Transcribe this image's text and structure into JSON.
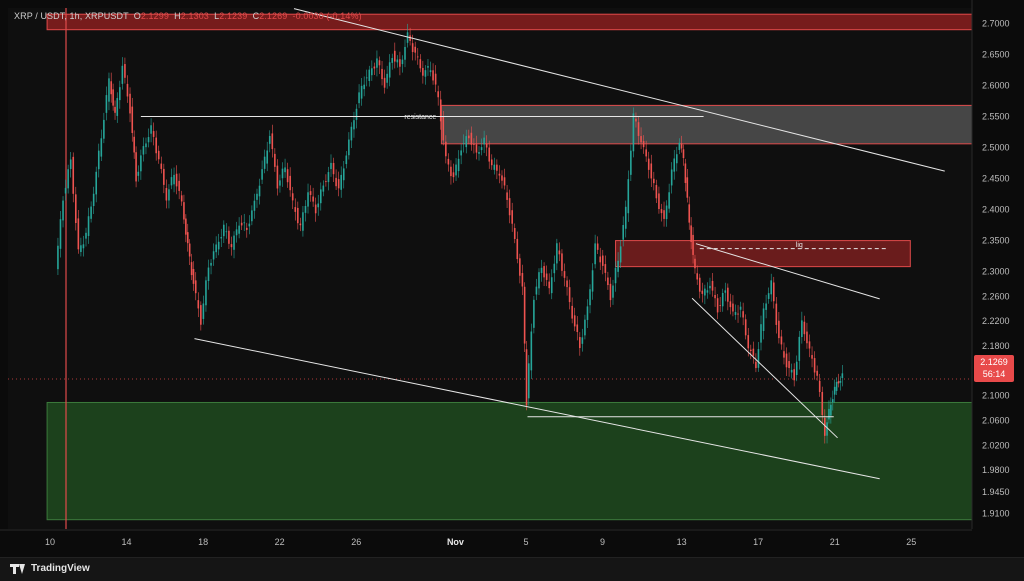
{
  "header": {
    "symbol": "XRP / USDT, 1h, XRPUSDT",
    "o_label": "O",
    "o_value": "2.1299",
    "h_label": "H",
    "h_value": "2.1303",
    "l_label": "L",
    "l_value": "2.1239",
    "c_label": "C",
    "c_value": "2.1269",
    "change": "-0.0030 (-0.14%)"
  },
  "price_tag": {
    "price": "2.1269",
    "countdown": "56:14"
  },
  "footer": {
    "brand": "TradingView"
  },
  "colors": {
    "up": "#26a69a",
    "down": "#ef5350",
    "zone_red": "#8a1e1e",
    "zone_green": "#1f4a1f",
    "resistance_zone": "#5a5a5a",
    "line": "#e6e6e6",
    "price_tag": "#e84a4a"
  },
  "chart_data": {
    "type": "line",
    "title": "",
    "ylabel": "",
    "xlabel": "",
    "ylim": [
      1.885,
      2.725
    ],
    "y_ticks": [
      "2.7000",
      "2.6500",
      "2.6000",
      "2.5500",
      "2.5000",
      "2.4500",
      "2.4000",
      "2.3500",
      "2.3000",
      "2.2600",
      "2.2200",
      "2.1800",
      "2.1400",
      "2.1000",
      "2.0600",
      "2.0200",
      "1.9800",
      "1.9450",
      "1.9100"
    ],
    "x_ticks": [
      {
        "label": "10",
        "t": 0
      },
      {
        "label": "14",
        "t": 4
      },
      {
        "label": "18",
        "t": 8
      },
      {
        "label": "22",
        "t": 12
      },
      {
        "label": "26",
        "t": 16
      },
      {
        "label": "Nov",
        "t": 21,
        "bold": true
      },
      {
        "label": "5",
        "t": 25
      },
      {
        "label": "9",
        "t": 29
      },
      {
        "label": "13",
        "t": 33
      },
      {
        "label": "17",
        "t": 37
      },
      {
        "label": "21",
        "t": 41
      },
      {
        "label": "25",
        "t": 45
      }
    ],
    "xlim": [
      -0.1,
      48.6
    ],
    "series": [
      {
        "values": [
          [
            0.4,
            2.3
          ],
          [
            0.8,
            2.42
          ],
          [
            1.2,
            2.48
          ],
          [
            1.6,
            2.33
          ],
          [
            2.0,
            2.36
          ],
          [
            2.4,
            2.43
          ],
          [
            2.8,
            2.52
          ],
          [
            3.2,
            2.61
          ],
          [
            3.5,
            2.55
          ],
          [
            3.9,
            2.63
          ],
          [
            4.3,
            2.56
          ],
          [
            4.6,
            2.45
          ],
          [
            5.0,
            2.5
          ],
          [
            5.4,
            2.53
          ],
          [
            5.8,
            2.48
          ],
          [
            6.2,
            2.42
          ],
          [
            6.6,
            2.46
          ],
          [
            7.0,
            2.41
          ],
          [
            7.3,
            2.34
          ],
          [
            7.6,
            2.28
          ],
          [
            8.0,
            2.22
          ],
          [
            8.4,
            2.31
          ],
          [
            8.8,
            2.34
          ],
          [
            9.2,
            2.37
          ],
          [
            9.6,
            2.34
          ],
          [
            10.0,
            2.38
          ],
          [
            10.4,
            2.37
          ],
          [
            10.8,
            2.41
          ],
          [
            11.2,
            2.46
          ],
          [
            11.6,
            2.52
          ],
          [
            12.0,
            2.44
          ],
          [
            12.4,
            2.47
          ],
          [
            12.8,
            2.41
          ],
          [
            13.2,
            2.37
          ],
          [
            13.6,
            2.43
          ],
          [
            14.0,
            2.4
          ],
          [
            14.4,
            2.44
          ],
          [
            14.8,
            2.47
          ],
          [
            15.2,
            2.43
          ],
          [
            15.6,
            2.49
          ],
          [
            16.0,
            2.55
          ],
          [
            16.4,
            2.6
          ],
          [
            16.8,
            2.62
          ],
          [
            17.2,
            2.64
          ],
          [
            17.6,
            2.6
          ],
          [
            18.0,
            2.65
          ],
          [
            18.4,
            2.63
          ],
          [
            18.8,
            2.68
          ],
          [
            19.2,
            2.65
          ],
          [
            19.6,
            2.62
          ],
          [
            20.0,
            2.63
          ],
          [
            20.4,
            2.58
          ],
          [
            20.8,
            2.48
          ],
          [
            21.2,
            2.45
          ],
          [
            21.6,
            2.5
          ],
          [
            22.0,
            2.52
          ],
          [
            22.4,
            2.49
          ],
          [
            22.8,
            2.51
          ],
          [
            23.2,
            2.47
          ],
          [
            23.6,
            2.46
          ],
          [
            24.0,
            2.42
          ],
          [
            24.4,
            2.35
          ],
          [
            24.8,
            2.27
          ],
          [
            25.0,
            2.09
          ],
          [
            25.4,
            2.26
          ],
          [
            25.8,
            2.31
          ],
          [
            26.2,
            2.27
          ],
          [
            26.6,
            2.34
          ],
          [
            27.0,
            2.29
          ],
          [
            27.4,
            2.23
          ],
          [
            27.8,
            2.18
          ],
          [
            28.2,
            2.24
          ],
          [
            28.6,
            2.34
          ],
          [
            29.0,
            2.31
          ],
          [
            29.4,
            2.26
          ],
          [
            29.8,
            2.32
          ],
          [
            30.2,
            2.4
          ],
          [
            30.6,
            2.55
          ],
          [
            31.0,
            2.51
          ],
          [
            31.4,
            2.47
          ],
          [
            31.8,
            2.42
          ],
          [
            32.2,
            2.38
          ],
          [
            32.6,
            2.46
          ],
          [
            33.0,
            2.51
          ],
          [
            33.2,
            2.48
          ],
          [
            33.5,
            2.38
          ],
          [
            33.8,
            2.3
          ],
          [
            34.2,
            2.26
          ],
          [
            34.6,
            2.28
          ],
          [
            35.0,
            2.24
          ],
          [
            35.4,
            2.27
          ],
          [
            35.8,
            2.23
          ],
          [
            36.2,
            2.24
          ],
          [
            36.6,
            2.18
          ],
          [
            37.0,
            2.15
          ],
          [
            37.4,
            2.24
          ],
          [
            37.8,
            2.28
          ],
          [
            38.2,
            2.19
          ],
          [
            38.6,
            2.15
          ],
          [
            39.0,
            2.13
          ],
          [
            39.4,
            2.22
          ],
          [
            39.8,
            2.17
          ],
          [
            40.2,
            2.13
          ],
          [
            40.6,
            2.04
          ],
          [
            40.9,
            2.09
          ],
          [
            41.2,
            2.12
          ],
          [
            41.5,
            2.13
          ]
        ]
      }
    ],
    "zones": [
      {
        "name": "upper-red-zone",
        "y1": 2.715,
        "y2": 2.69,
        "x1": -0.1,
        "x2": 48.6,
        "color": "#8a1e1e"
      },
      {
        "name": "resistance-zone",
        "y1": 2.568,
        "y2": 2.506,
        "x1": 20.5,
        "x2": 48.6,
        "color": "#5a5a5a",
        "label": "resistance"
      },
      {
        "name": "liq-zone",
        "y1": 2.35,
        "y2": 2.308,
        "x1": 29.6,
        "x2": 45.0,
        "color": "#7a1e1e",
        "label": "liq"
      },
      {
        "name": "demand-zone",
        "y1": 2.089,
        "y2": 1.9,
        "x1": -0.1,
        "x2": 48.6,
        "color": "#1f4a1f"
      }
    ],
    "lines": [
      {
        "name": "upper-channel-line",
        "from": [
          12.8,
          2.724
        ],
        "to": [
          46.8,
          2.462
        ]
      },
      {
        "name": "lower-channel-line",
        "from": [
          7.6,
          2.192
        ],
        "to": [
          43.4,
          1.966
        ]
      },
      {
        "name": "falling-wedge-upper",
        "from": [
          33.8,
          2.345
        ],
        "to": [
          43.4,
          2.256
        ]
      },
      {
        "name": "falling-wedge-lower",
        "from": [
          33.6,
          2.257
        ],
        "to": [
          41.2,
          2.032
        ]
      },
      {
        "name": "resistance-line",
        "from": [
          4.8,
          2.55
        ],
        "to": [
          34.2,
          2.55
        ]
      },
      {
        "name": "support-line",
        "from": [
          25.0,
          2.066
        ],
        "to": [
          41.0,
          2.066
        ]
      },
      {
        "name": "liq-dashed-line",
        "from": [
          34.0,
          2.337
        ],
        "to": [
          43.8,
          2.337
        ],
        "dashed": true
      }
    ],
    "current_price": 2.1269
  }
}
